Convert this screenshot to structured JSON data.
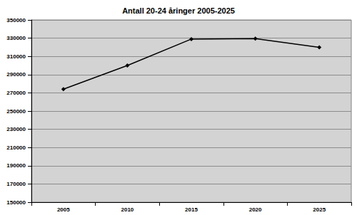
{
  "chart_data": {
    "type": "line",
    "title": "Antall 20-24 åringer 2005-2025",
    "categories": [
      "2005",
      "2010",
      "2015",
      "2020",
      "2025"
    ],
    "values": [
      274000,
      300000,
      329000,
      329500,
      320000
    ],
    "color": "#000000",
    "marker": "diamond",
    "line_style": "solid",
    "ylim": [
      150000,
      350000
    ],
    "yticks": [
      150000,
      170000,
      190000,
      210000,
      230000,
      250000,
      270000,
      290000,
      310000,
      330000,
      350000
    ],
    "grid": true
  }
}
